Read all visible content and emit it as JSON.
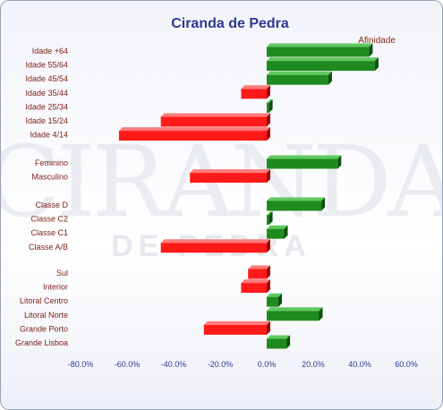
{
  "chart_data": {
    "type": "bar",
    "orientation": "horizontal",
    "title": "Ciranda de Pedra",
    "legend": {
      "label": "Afinidade",
      "placement": "top-right"
    },
    "watermark": {
      "top": "CIRANDA",
      "bottom": "DE PEDRA"
    },
    "xlim": [
      -80,
      60
    ],
    "xticks": [
      "-80.0%",
      "-60.0%",
      "-40.0%",
      "-20.0%",
      "0.0%",
      "20.0%",
      "40.0%",
      "60.0%"
    ],
    "groups": [
      {
        "categories": [
          "Idade +64",
          "Idade 55/64",
          "Idade 45/54",
          "Idade 35/44",
          "Idade 25/34",
          "Idade 15/24",
          "Idade 4/14"
        ],
        "values": [
          44,
          46.5,
          26.5,
          -11,
          1,
          -45.5,
          -63.5
        ]
      },
      {
        "categories": [
          "Feminino",
          "Masculino"
        ],
        "values": [
          30.5,
          -33
        ]
      },
      {
        "categories": [
          "Classe D",
          "Classe C2",
          "Classe C1",
          "Classe A/B"
        ],
        "values": [
          23.5,
          1,
          7.5,
          -45.5
        ]
      },
      {
        "categories": [
          "Sul",
          "Interior",
          "Litoral Centro",
          "Litoral Norte",
          "Grande Porto",
          "Grande Lisboa"
        ],
        "values": [
          -8,
          -11,
          5,
          22.5,
          -27,
          8.5
        ]
      }
    ],
    "colors": {
      "positive": "#1f8a1f",
      "positive_top": "#5fc85f",
      "positive_side": "#0d4f0d",
      "negative": "#ff1a1a",
      "negative_top": "#ff7a7a",
      "negative_side": "#a00000"
    }
  }
}
